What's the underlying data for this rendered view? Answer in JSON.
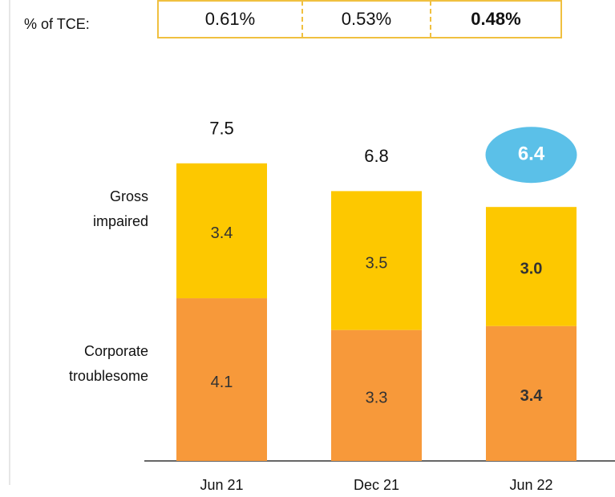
{
  "chart_data": {
    "type": "stacked_bar",
    "tce": {
      "label": "% of TCE:",
      "values": [
        0.61,
        0.53,
        0.48
      ],
      "value_labels": [
        "0.61%",
        "0.53%",
        "0.48%"
      ],
      "border_color": "#f0c040"
    },
    "categories": [
      "Jun 21",
      "Dec 21",
      "Jun 22"
    ],
    "series": [
      {
        "name": "Corporate troublesome",
        "color": "#f7993a",
        "values": [
          4.1,
          3.3,
          3.4
        ]
      },
      {
        "name": "Gross impaired",
        "color": "#fdc800",
        "values": [
          3.4,
          3.5,
          3
        ],
        "value_labels": [
          "3.4",
          "3.5",
          "3.0"
        ]
      }
    ],
    "totals": [
      7.5,
      6.8,
      6.4
    ],
    "highlight_index": 2,
    "highlight_color": "#5bc0e8"
  }
}
